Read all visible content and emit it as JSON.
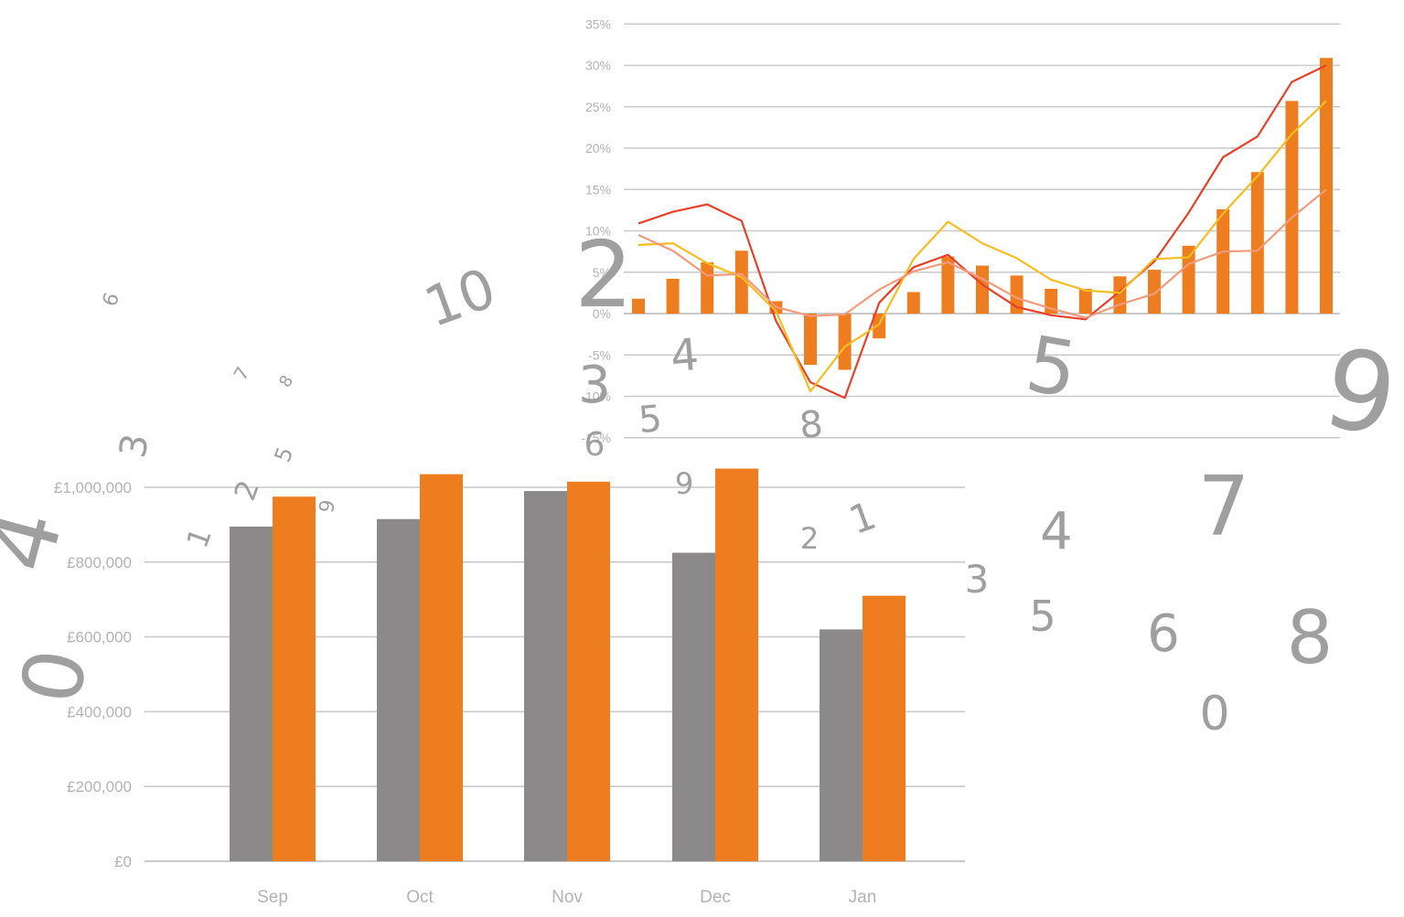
{
  "colors": {
    "grey_bar": "#8b898a",
    "orange_bar": "#ee7d1f",
    "line_red": "#e8402a",
    "line_yellow": "#f5bd1f",
    "line_salmon": "#f29a7c",
    "grid": "#c9c9c9",
    "axis_text": "#b3b3b3",
    "float_digits": "#9a9a9a"
  },
  "chart_data": [
    {
      "type": "bar",
      "categories": [
        "Sep",
        "Oct",
        "Nov",
        "Dec",
        "Jan"
      ],
      "series": [
        {
          "values": [
            895000,
            915000,
            990000,
            825000,
            620000
          ],
          "color": "#8b898a"
        },
        {
          "values": [
            975000,
            1035000,
            1015000,
            1050000,
            710000
          ],
          "color": "#ee7d1f"
        }
      ],
      "y_ticks": [
        0,
        200000,
        400000,
        600000,
        800000,
        1000000
      ],
      "y_tick_labels": [
        "£0",
        "£200,000",
        "£400,000",
        "£600,000",
        "£800,000",
        "£1,000,000"
      ],
      "ylim": [
        0,
        1000000
      ],
      "grid": true,
      "legend": "none"
    },
    {
      "type": "bar+line",
      "x": [
        1,
        2,
        3,
        4,
        5,
        6,
        7,
        8,
        9,
        10,
        11,
        12,
        13,
        14,
        15,
        16,
        17,
        18,
        19,
        20,
        21
      ],
      "bars": {
        "values": [
          1.8,
          4.2,
          6.2,
          7.6,
          1.5,
          -6.2,
          -6.8,
          -3.0,
          2.6,
          6.9,
          5.8,
          4.6,
          3.0,
          3.0,
          4.5,
          5.3,
          8.2,
          12.6,
          17.1,
          25.7,
          30.9
        ],
        "color": "#ee7d1f"
      },
      "series": [
        {
          "values": [
            10.9,
            12.3,
            13.2,
            11.2,
            -0.9,
            -8.3,
            -10.2,
            1.3,
            5.6,
            7.1,
            3.5,
            0.8,
            -0.2,
            -0.7,
            2.7,
            6.3,
            12.2,
            18.9,
            21.4,
            28.0,
            30.0
          ],
          "color": "#e8402a"
        },
        {
          "values": [
            8.3,
            8.5,
            6.1,
            4.4,
            0.3,
            -9.4,
            -4.0,
            -1.3,
            6.6,
            11.1,
            8.5,
            6.7,
            4.1,
            2.8,
            2.5,
            6.6,
            6.8,
            12.1,
            16.6,
            21.7,
            25.7
          ],
          "color": "#f5bd1f"
        },
        {
          "values": [
            9.5,
            7.6,
            4.6,
            4.8,
            0.8,
            -0.3,
            -0.1,
            2.9,
            5.1,
            6.2,
            4.2,
            1.9,
            0.6,
            -0.5,
            1.1,
            2.4,
            6.0,
            7.5,
            7.6,
            11.6,
            15.0
          ],
          "color": "#f29a7c"
        }
      ],
      "y_ticks": [
        -15,
        -10,
        -5,
        0,
        5,
        10,
        15,
        20,
        25,
        30,
        35
      ],
      "y_tick_labels": [
        "-15%",
        "-10%",
        "-5%",
        "0%",
        "5%",
        "10%",
        "15%",
        "20%",
        "25%",
        "30%",
        "35%"
      ],
      "ylim": [
        -15,
        35
      ],
      "grid": true,
      "legend": "none"
    }
  ],
  "floating_digits": [
    "6",
    "7",
    "8",
    "3",
    "2",
    "5",
    "9",
    "1",
    "4",
    "0",
    "10",
    "2",
    "4",
    "3",
    "5",
    "8",
    "6",
    "5",
    "9",
    "9",
    "2",
    "1",
    "4",
    "3",
    "5",
    "7",
    "6",
    "0",
    "8"
  ]
}
